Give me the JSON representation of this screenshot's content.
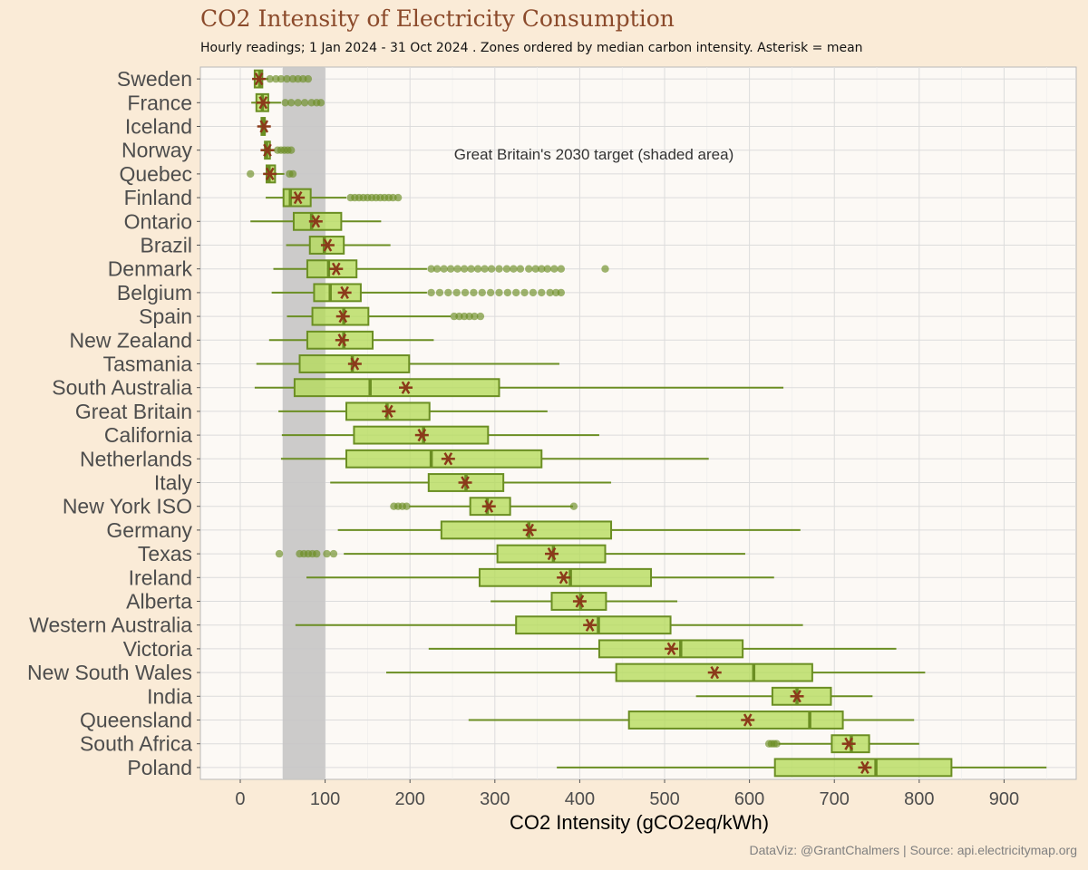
{
  "chart_data": {
    "type": "boxplot",
    "title": "CO2 Intensity of Electricity Consumption",
    "subtitle": "Hourly readings; 1 Jan 2024 - 31 Oct 2024 . Zones ordered by median carbon intensity. Asterisk = mean",
    "xlabel": "CO2 Intensity (gCO2eq/kWh)",
    "ylabel": "",
    "xlim": [
      -47,
      985
    ],
    "xticks": [
      0,
      100,
      200,
      300,
      400,
      500,
      600,
      700,
      800,
      900
    ],
    "grid": true,
    "annotation": "Great Britain's 2030 target (shaded area)",
    "target_band": [
      50,
      100
    ],
    "series": [
      {
        "name": "Sweden",
        "whisker_low": 17,
        "q1": 17,
        "median": 23,
        "q3": 26,
        "whisker_high": 33,
        "mean": 22,
        "outliers": [
          35,
          42,
          48,
          55,
          62,
          68,
          74,
          80
        ]
      },
      {
        "name": "France",
        "whisker_low": 13,
        "q1": 19,
        "median": 26,
        "q3": 33,
        "whisker_high": 48,
        "mean": 27,
        "outliers": [
          53,
          60,
          68,
          76,
          84,
          90,
          95
        ]
      },
      {
        "name": "Iceland",
        "whisker_low": 24,
        "q1": 25,
        "median": 27,
        "q3": 29,
        "whisker_high": 31,
        "mean": 28,
        "outliers": []
      },
      {
        "name": "Norway",
        "whisker_low": 27,
        "q1": 29,
        "median": 31,
        "q3": 35,
        "whisker_high": 41,
        "mean": 32,
        "outliers": [
          44,
          48,
          52,
          56,
          60
        ]
      },
      {
        "name": "Quebec",
        "whisker_low": 27,
        "q1": 31,
        "median": 34,
        "q3": 41,
        "whisker_high": 52,
        "mean": 35,
        "outliers": [
          12,
          58,
          62
        ]
      },
      {
        "name": "Finland",
        "whisker_low": 30,
        "q1": 51,
        "median": 59,
        "q3": 83,
        "whisker_high": 125,
        "mean": 68,
        "outliers": [
          130,
          135,
          140,
          145,
          150,
          155,
          160,
          165,
          170,
          175,
          180,
          186
        ]
      },
      {
        "name": "Ontario",
        "whisker_low": 12,
        "q1": 63,
        "median": 84,
        "q3": 119,
        "whisker_high": 166,
        "mean": 89,
        "outliers": []
      },
      {
        "name": "Brazil",
        "whisker_low": 54,
        "q1": 82,
        "median": 99,
        "q3": 122,
        "whisker_high": 177,
        "mean": 103,
        "outliers": []
      },
      {
        "name": "Denmark",
        "whisker_low": 39,
        "q1": 79,
        "median": 104,
        "q3": 137,
        "whisker_high": 220,
        "mean": 113,
        "outliers": [
          225,
          232,
          240,
          248,
          256,
          264,
          272,
          280,
          288,
          296,
          305,
          314,
          322,
          330,
          340,
          348,
          355,
          362,
          370,
          378,
          430
        ]
      },
      {
        "name": "Belgium",
        "whisker_low": 37,
        "q1": 87,
        "median": 106,
        "q3": 142,
        "whisker_high": 220,
        "mean": 123,
        "outliers": [
          225,
          235,
          245,
          255,
          265,
          275,
          285,
          295,
          305,
          315,
          325,
          335,
          345,
          355,
          365,
          372,
          378
        ]
      },
      {
        "name": "Spain",
        "whisker_low": 55,
        "q1": 85,
        "median": 122,
        "q3": 151,
        "whisker_high": 248,
        "mean": 121,
        "outliers": [
          252,
          258,
          264,
          270,
          276,
          283
        ]
      },
      {
        "name": "New Zealand",
        "whisker_low": 34,
        "q1": 79,
        "median": 122,
        "q3": 156,
        "whisker_high": 228,
        "mean": 120,
        "outliers": []
      },
      {
        "name": "Tasmania",
        "whisker_low": 19,
        "q1": 70,
        "median": 132,
        "q3": 199,
        "whisker_high": 376,
        "mean": 135,
        "outliers": []
      },
      {
        "name": "South Australia",
        "whisker_low": 17,
        "q1": 64,
        "median": 153,
        "q3": 305,
        "whisker_high": 640,
        "mean": 195,
        "outliers": []
      },
      {
        "name": "Great Britain",
        "whisker_low": 45,
        "q1": 125,
        "median": 173,
        "q3": 223,
        "whisker_high": 362,
        "mean": 175,
        "outliers": []
      },
      {
        "name": "California",
        "whisker_low": 49,
        "q1": 134,
        "median": 216,
        "q3": 292,
        "whisker_high": 423,
        "mean": 214,
        "outliers": []
      },
      {
        "name": "Netherlands",
        "whisker_low": 48,
        "q1": 125,
        "median": 225,
        "q3": 355,
        "whisker_high": 552,
        "mean": 245,
        "outliers": []
      },
      {
        "name": "Italy",
        "whisker_low": 106,
        "q1": 222,
        "median": 266,
        "q3": 310,
        "whisker_high": 437,
        "mean": 265,
        "outliers": []
      },
      {
        "name": "New York ISO",
        "whisker_low": 199,
        "q1": 271,
        "median": 291,
        "q3": 318,
        "whisker_high": 392,
        "mean": 293,
        "outliers": [
          181,
          186,
          191,
          196,
          393
        ]
      },
      {
        "name": "Germany",
        "whisker_low": 115,
        "q1": 237,
        "median": 340,
        "q3": 437,
        "whisker_high": 660,
        "mean": 341,
        "outliers": []
      },
      {
        "name": "Texas",
        "whisker_low": 122,
        "q1": 303,
        "median": 369,
        "q3": 430,
        "whisker_high": 595,
        "mean": 367,
        "outliers": [
          46,
          70,
          75,
          80,
          85,
          90,
          102,
          110
        ]
      },
      {
        "name": "Ireland",
        "whisker_low": 78,
        "q1": 282,
        "median": 389,
        "q3": 484,
        "whisker_high": 629,
        "mean": 381,
        "outliers": []
      },
      {
        "name": "Alberta",
        "whisker_low": 295,
        "q1": 367,
        "median": 401,
        "q3": 431,
        "whisker_high": 515,
        "mean": 400,
        "outliers": []
      },
      {
        "name": "Western Australia",
        "whisker_low": 65,
        "q1": 325,
        "median": 422,
        "q3": 507,
        "whisker_high": 663,
        "mean": 412,
        "outliers": []
      },
      {
        "name": "Victoria",
        "whisker_low": 222,
        "q1": 423,
        "median": 519,
        "q3": 592,
        "whisker_high": 773,
        "mean": 508,
        "outliers": []
      },
      {
        "name": "New South Wales",
        "whisker_low": 172,
        "q1": 443,
        "median": 605,
        "q3": 674,
        "whisker_high": 807,
        "mean": 559,
        "outliers": []
      },
      {
        "name": "India",
        "whisker_low": 537,
        "q1": 627,
        "median": 656,
        "q3": 696,
        "whisker_high": 745,
        "mean": 656,
        "outliers": []
      },
      {
        "name": "Queensland",
        "whisker_low": 269,
        "q1": 458,
        "median": 671,
        "q3": 710,
        "whisker_high": 794,
        "mean": 598,
        "outliers": []
      },
      {
        "name": "South Africa",
        "whisker_low": 634,
        "q1": 697,
        "median": 720,
        "q3": 741,
        "whisker_high": 800,
        "mean": 717,
        "outliers": [
          623,
          626,
          629,
          632
        ]
      },
      {
        "name": "Poland",
        "whisker_low": 373,
        "q1": 630,
        "median": 749,
        "q3": 838,
        "whisker_high": 950,
        "mean": 736,
        "outliers": []
      }
    ]
  },
  "caption": "DataViz: @GrantChalmers | Source: api.electricitymap.org",
  "colors": {
    "box_fill": "#b5db5a",
    "box_stroke": "#6b8e23",
    "mean_marker": "#8b3a1a",
    "panel_bg": "#fcf9f5",
    "band": "#c7c5c5"
  }
}
